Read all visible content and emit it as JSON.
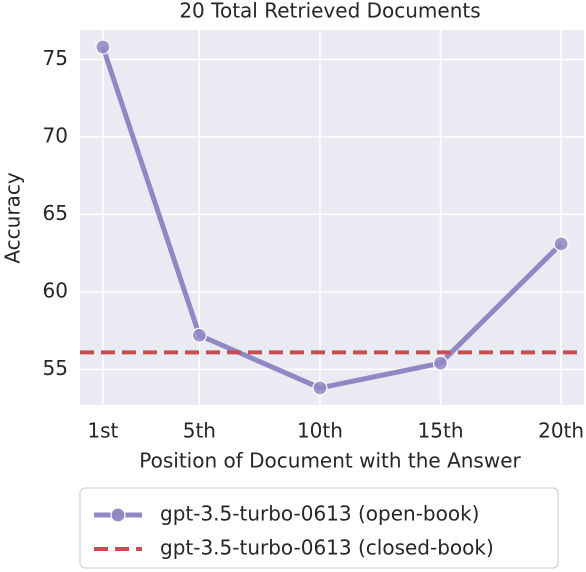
{
  "chart_data": {
    "type": "line",
    "title": "20 Total Retrieved Documents",
    "x_label": "Position of Document with the Answer",
    "y_label": "Accuracy",
    "x": [
      1,
      5,
      10,
      15,
      20
    ],
    "xlim": [
      0.05,
      20.95
    ],
    "xticks": [
      {
        "value": 1,
        "label": "1st"
      },
      {
        "value": 5,
        "label": "5th"
      },
      {
        "value": 10,
        "label": "10th"
      },
      {
        "value": 15,
        "label": "15th"
      },
      {
        "value": 20,
        "label": "20th"
      }
    ],
    "ylim": [
      52.7,
      76.9
    ],
    "yticks": [
      55,
      60,
      65,
      70,
      75
    ],
    "grid": true,
    "legend": "below",
    "series": [
      {
        "name": "gpt-3.5-turbo-0613 (open-book)",
        "color": "#9088c4",
        "values": [
          75.8,
          57.2,
          53.8,
          55.4,
          63.1
        ]
      },
      {
        "name": "gpt-3.5-turbo-0613 (closed-book)",
        "color": "#c44e52",
        "style": "dashed-hline",
        "value": 56.1
      }
    ]
  }
}
